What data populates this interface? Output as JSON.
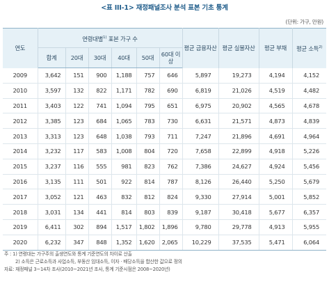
{
  "title": "<표 III-1> 재정패널조사 분석 표본 기초 통계",
  "unit": "(단위: 가구, 만원)",
  "header": {
    "year": "연도",
    "group": "연령대별",
    "group_sup": "1)",
    "group_suffix": " 표본 가구 수",
    "sub": [
      "합계",
      "20대",
      "30대",
      "40대",
      "50대",
      "60대 이상"
    ],
    "right": [
      "평균 금융자산",
      "평균 실물자산",
      "평균 부채",
      "평균 소득"
    ],
    "income_sup": "2)"
  },
  "rows": [
    [
      "2009",
      "3,642",
      "151",
      "900",
      "1,188",
      "757",
      "646",
      "5,897",
      "19,273",
      "4,194",
      "4,152"
    ],
    [
      "2010",
      "3,597",
      "132",
      "822",
      "1,171",
      "782",
      "690",
      "6,819",
      "21,026",
      "4,519",
      "4,482"
    ],
    [
      "2011",
      "3,403",
      "122",
      "741",
      "1,094",
      "795",
      "651",
      "6,975",
      "20,902",
      "4,565",
      "4,678"
    ],
    [
      "2012",
      "3,385",
      "123",
      "684",
      "1,065",
      "783",
      "730",
      "6,631",
      "21,571",
      "4,873",
      "4,839"
    ],
    [
      "2013",
      "3,313",
      "123",
      "648",
      "1,038",
      "793",
      "711",
      "7,247",
      "21,896",
      "4,691",
      "4,964"
    ],
    [
      "2014",
      "3,232",
      "117",
      "583",
      "1,008",
      "804",
      "720",
      "7,658",
      "22,899",
      "4,918",
      "5,226"
    ],
    [
      "2015",
      "3,237",
      "116",
      "555",
      "981",
      "823",
      "762",
      "7,386",
      "24,627",
      "4,924",
      "5,456"
    ],
    [
      "2016",
      "3,135",
      "111",
      "501",
      "922",
      "814",
      "787",
      "8,126",
      "26,440",
      "5,250",
      "5,679"
    ],
    [
      "2017",
      "3,052",
      "121",
      "463",
      "832",
      "812",
      "824",
      "9,330",
      "27,914",
      "5,001",
      "5,852"
    ],
    [
      "2018",
      "3,031",
      "134",
      "441",
      "814",
      "803",
      "839",
      "9,187",
      "30,418",
      "5,677",
      "6,357"
    ],
    [
      "2019",
      "6,411",
      "302",
      "894",
      "1,517",
      "1,802",
      "1,896",
      "9,780",
      "29,778",
      "4,913",
      "5,955"
    ],
    [
      "2020",
      "6,232",
      "347",
      "848",
      "1,352",
      "1,620",
      "2,065",
      "10,229",
      "37,535",
      "5,471",
      "6,064"
    ]
  ],
  "notes": {
    "label": "주",
    "note1": ": 1) 연령대는 가구주의 출생연도와 통계 기준연도의 차이로 산출",
    "note2": "2) 소득은 근로소득과 사업소득, 부동산 임대소득, 이자 · 배당소득을 합산한 값으로 정의",
    "source": "자료: 재정패널 3~14차 조사(2010~2021년 조사, 통계 기준시점은 2008~2020년)"
  }
}
